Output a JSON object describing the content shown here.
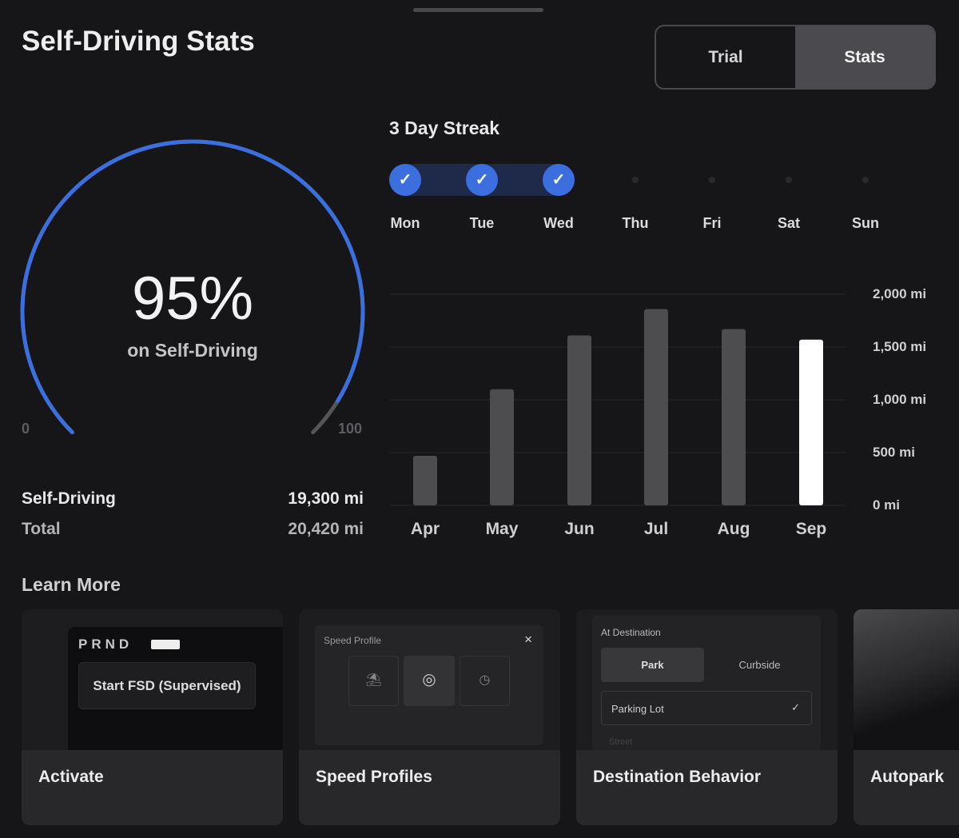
{
  "header": {
    "title": "Self-Driving Stats",
    "tabs": [
      {
        "label": "Trial",
        "active": false
      },
      {
        "label": "Stats",
        "active": true
      }
    ]
  },
  "gauge": {
    "value_percent": 95,
    "value_label": "95%",
    "caption": "on Self-Driving",
    "min_label": "0",
    "max_label": "100",
    "color": "#3b6fe0"
  },
  "totals": [
    {
      "label": "Self-Driving",
      "value": "19,300 mi"
    },
    {
      "label": "Total",
      "value": "20,420 mi"
    }
  ],
  "streak": {
    "title": "3 Day Streak",
    "days": [
      {
        "label": "Mon",
        "done": true
      },
      {
        "label": "Tue",
        "done": true
      },
      {
        "label": "Wed",
        "done": true
      },
      {
        "label": "Thu",
        "done": false
      },
      {
        "label": "Fri",
        "done": false
      },
      {
        "label": "Sat",
        "done": false
      },
      {
        "label": "Sun",
        "done": false
      }
    ]
  },
  "chart_data": {
    "type": "bar",
    "categories": [
      "Apr",
      "May",
      "Jun",
      "Jul",
      "Aug",
      "Sep"
    ],
    "values": [
      470,
      1100,
      1610,
      1860,
      1670,
      1570
    ],
    "highlight": "Sep",
    "unit": "mi",
    "ylim": [
      0,
      2000
    ],
    "yticks": [
      "0 mi",
      "500 mi",
      "1,000 mi",
      "1,500 mi",
      "2,000 mi"
    ],
    "grid": true,
    "bar_color": "#4d4d50",
    "highlight_color": "#ffffff"
  },
  "learn_more": {
    "title": "Learn More",
    "cards": [
      {
        "label": "Activate",
        "preview": {
          "gear": "PRND",
          "button": "Start FSD (Supervised)"
        }
      },
      {
        "label": "Speed Profiles",
        "preview": {
          "title": "Speed Profile",
          "close": "×"
        }
      },
      {
        "label": "Destination Behavior",
        "preview": {
          "title": "At Destination",
          "options": [
            "Park",
            "Curbside"
          ],
          "selected": "Parking Lot",
          "next": "Street"
        }
      },
      {
        "label": "Autopark"
      }
    ]
  }
}
